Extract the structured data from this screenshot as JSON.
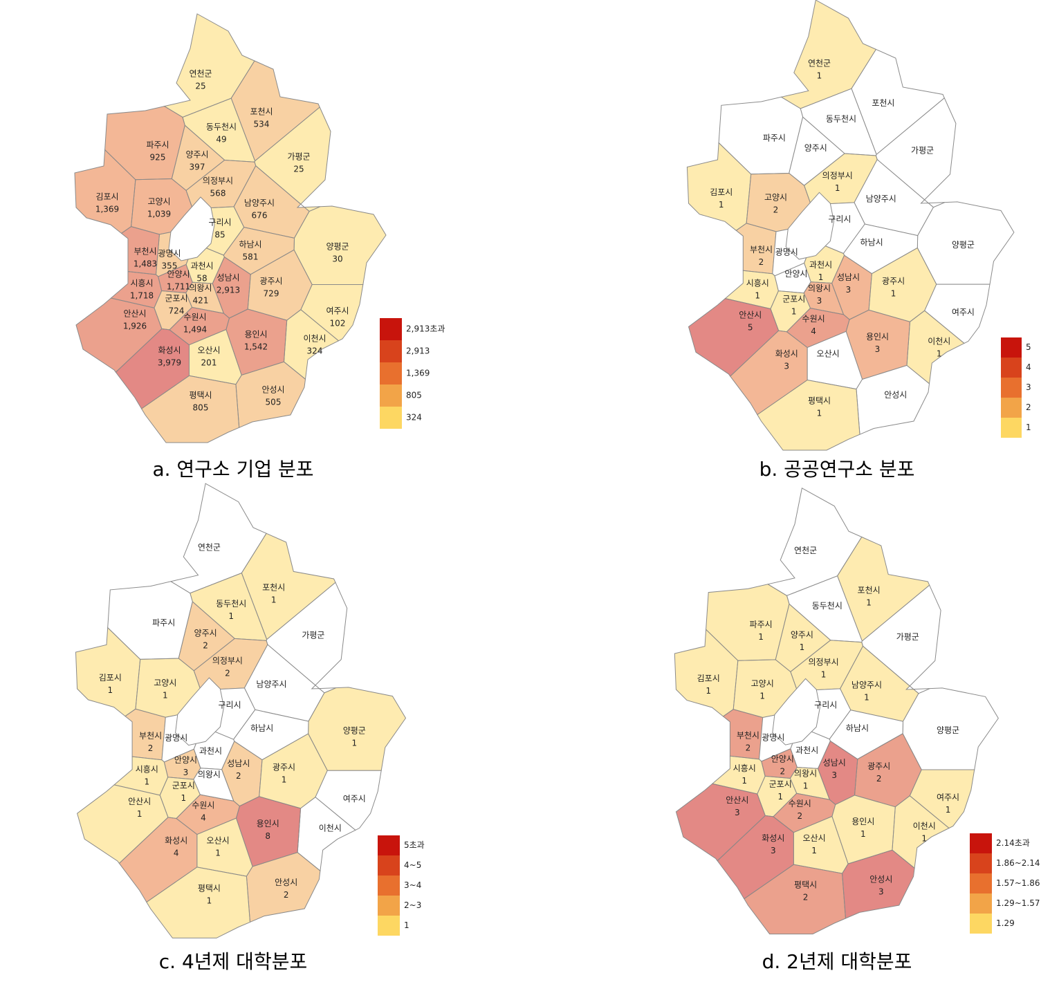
{
  "chart_data": [
    {
      "type": "choropleth",
      "title": "a. 연구소 기업 분포",
      "categories": [
        "연천군",
        "포천시",
        "동두천시",
        "파주시",
        "양주시",
        "가평군",
        "의정부시",
        "김포시",
        "고양시",
        "남양주시",
        "구리시",
        "양평군",
        "하남시",
        "부천시",
        "광명시",
        "과천시",
        "시흥시",
        "안양시",
        "의왕시",
        "성남시",
        "광주시",
        "군포시",
        "안산시",
        "수원시",
        "여주시",
        "이천시",
        "용인시",
        "화성시",
        "오산시",
        "안성시",
        "평택시"
      ],
      "values": [
        25,
        534,
        49,
        925,
        397,
        25,
        568,
        1369,
        1039,
        676,
        85,
        30,
        581,
        1483,
        355,
        58,
        1718,
        1711,
        421,
        2913,
        729,
        724,
        1926,
        1494,
        102,
        324,
        1542,
        3979,
        201,
        505,
        805
      ],
      "value_labels": [
        "25",
        "534",
        "49",
        "925",
        "397",
        "25",
        "568",
        "1,369",
        "1,039",
        "676",
        "85",
        "30",
        "581",
        "1,483",
        "355",
        "58",
        "1,718",
        "1,711",
        "421",
        "2,913",
        "729",
        "724",
        "1,926",
        "1,494",
        "102",
        "324",
        "1,542",
        "3,979",
        "201",
        "505",
        "805"
      ],
      "legend": [
        {
          "label": "2,913초과",
          "color": "#c8140c"
        },
        {
          "label": "2,913",
          "value": 2913,
          "color": "#d8431c"
        },
        {
          "label": "1,369",
          "value": 1369,
          "color": "#e8702e"
        },
        {
          "label": "805",
          "value": 805,
          "color": "#f2a448"
        },
        {
          "value": 324,
          "color": "#fdd762"
        }
      ]
    },
    {
      "type": "choropleth",
      "title": "b. 공공연구소 분포",
      "categories": [
        "연천군",
        "포천시",
        "동두천시",
        "파주시",
        "양주시",
        "가평군",
        "의정부시",
        "김포시",
        "고양시",
        "남양주시",
        "구리시",
        "양평군",
        "하남시",
        "부천시",
        "광명시",
        "과천시",
        "시흥시",
        "안양시",
        "의왕시",
        "성남시",
        "광주시",
        "군포시",
        "안산시",
        "수원시",
        "여주시",
        "이천시",
        "용인시",
        "화성시",
        "오산시",
        "안성시",
        "평택시"
      ],
      "values": [
        1,
        null,
        null,
        null,
        null,
        null,
        1,
        1,
        2,
        null,
        null,
        null,
        null,
        2,
        null,
        1,
        1,
        null,
        3,
        3,
        1,
        1,
        5,
        4,
        null,
        1,
        3,
        3,
        null,
        null,
        1
      ],
      "legend": [
        {
          "value": 5,
          "color": "#c8140c"
        },
        {
          "value": 4,
          "color": "#d8431c"
        },
        {
          "value": 3,
          "color": "#e8702e"
        },
        {
          "value": 2,
          "color": "#f2a448"
        },
        {
          "value": 1,
          "color": "#fdd762"
        }
      ]
    },
    {
      "type": "choropleth",
      "title": "c. 4년제 대학분포",
      "categories": [
        "연천군",
        "포천시",
        "동두천시",
        "파주시",
        "양주시",
        "가평군",
        "의정부시",
        "김포시",
        "고양시",
        "남양주시",
        "구리시",
        "양평군",
        "하남시",
        "부천시",
        "광명시",
        "과천시",
        "시흥시",
        "안양시",
        "의왕시",
        "성남시",
        "광주시",
        "군포시",
        "안산시",
        "수원시",
        "여주시",
        "이천시",
        "용인시",
        "화성시",
        "오산시",
        "안성시",
        "평택시"
      ],
      "values": [
        null,
        1,
        1,
        null,
        2,
        null,
        2,
        1,
        1,
        null,
        null,
        1,
        null,
        2,
        null,
        null,
        1,
        3,
        null,
        2,
        1,
        1,
        1,
        4,
        null,
        null,
        8,
        4,
        1,
        2,
        1
      ],
      "legend": [
        {
          "label": "5초과",
          "color": "#c8140c"
        },
        {
          "label": "4~5",
          "range": [
            4,
            5
          ],
          "color": "#d8431c"
        },
        {
          "label": "3~4",
          "range": [
            3,
            4
          ],
          "color": "#e8702e"
        },
        {
          "label": "2~3",
          "range": [
            2,
            3
          ],
          "color": "#f2a448"
        },
        {
          "value": 1,
          "color": "#fdd762"
        }
      ]
    },
    {
      "type": "choropleth",
      "title": "d. 2년제 대학분포",
      "categories": [
        "연천군",
        "포천시",
        "동두천시",
        "파주시",
        "양주시",
        "가평군",
        "의정부시",
        "김포시",
        "고양시",
        "남양주시",
        "구리시",
        "양평군",
        "하남시",
        "부천시",
        "광명시",
        "과천시",
        "시흥시",
        "안양시",
        "의왕시",
        "성남시",
        "광주시",
        "군포시",
        "안산시",
        "수원시",
        "여주시",
        "이천시",
        "용인시",
        "화성시",
        "오산시",
        "안성시",
        "평택시"
      ],
      "values": [
        null,
        1,
        null,
        1,
        1,
        null,
        1,
        1,
        1,
        1,
        null,
        null,
        null,
        2,
        null,
        null,
        1,
        2,
        1,
        3,
        2,
        1,
        3,
        2,
        1,
        1,
        1,
        3,
        1,
        3,
        2
      ],
      "legend": [
        {
          "label": "2.14초과",
          "color": "#c8140c"
        },
        {
          "label": "1.86~2.14",
          "range": [
            1.86,
            2.14
          ],
          "color": "#d8431c"
        },
        {
          "label": "1.57~1.86",
          "range": [
            1.57,
            1.86
          ],
          "color": "#e8702e"
        },
        {
          "label": "1.29~1.57",
          "range": [
            1.29,
            1.57
          ],
          "color": "#f2a448"
        },
        {
          "value": 1.29,
          "color": "#fdd762"
        }
      ]
    }
  ]
}
